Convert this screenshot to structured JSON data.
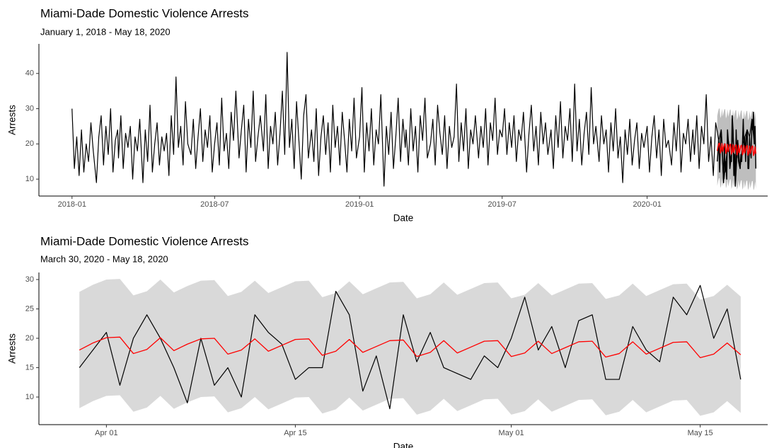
{
  "chart_data": [
    {
      "type": "line",
      "title": "Miami-Dade Domestic Violence Arrests",
      "subtitle": "January 1, 2018 - May 18, 2020",
      "x_label": "Date",
      "y_label": "Arrests",
      "xlim": [
        "2017-11-20",
        "2020-06-02"
      ],
      "ylim": [
        5.2,
        48.4
      ],
      "yticks": [
        10,
        20,
        30,
        40
      ],
      "xticks": [
        {
          "value": "2018-01-01",
          "label": "2018-01"
        },
        {
          "value": "2018-07-01",
          "label": "2018-07"
        },
        {
          "value": "2019-01-01",
          "label": "2019-01"
        },
        {
          "value": "2019-07-01",
          "label": "2019-07"
        },
        {
          "value": "2020-01-01",
          "label": "2020-01"
        }
      ],
      "band_color": "#bebebe",
      "x": [
        "2018-01-01",
        "2018-01-04",
        "2018-01-07",
        "2018-01-10",
        "2018-01-13",
        "2018-01-16",
        "2018-01-19",
        "2018-01-22",
        "2018-01-25",
        "2018-01-28",
        "2018-02-01",
        "2018-02-04",
        "2018-02-07",
        "2018-02-10",
        "2018-02-13",
        "2018-02-16",
        "2018-02-19",
        "2018-02-22",
        "2018-02-25",
        "2018-02-28",
        "2018-03-01",
        "2018-03-04",
        "2018-03-07",
        "2018-03-10",
        "2018-03-13",
        "2018-03-16",
        "2018-03-19",
        "2018-03-22",
        "2018-03-25",
        "2018-03-28",
        "2018-04-01",
        "2018-04-04",
        "2018-04-07",
        "2018-04-10",
        "2018-04-13",
        "2018-04-16",
        "2018-04-19",
        "2018-04-22",
        "2018-04-25",
        "2018-04-28",
        "2018-05-01",
        "2018-05-04",
        "2018-05-07",
        "2018-05-10",
        "2018-05-13",
        "2018-05-16",
        "2018-05-19",
        "2018-05-22",
        "2018-05-25",
        "2018-05-28",
        "2018-06-01",
        "2018-06-04",
        "2018-06-07",
        "2018-06-10",
        "2018-06-13",
        "2018-06-16",
        "2018-06-19",
        "2018-06-22",
        "2018-06-25",
        "2018-06-28",
        "2018-07-01",
        "2018-07-04",
        "2018-07-07",
        "2018-07-10",
        "2018-07-13",
        "2018-07-16",
        "2018-07-19",
        "2018-07-22",
        "2018-07-25",
        "2018-07-28",
        "2018-08-01",
        "2018-08-04",
        "2018-08-07",
        "2018-08-10",
        "2018-08-13",
        "2018-08-16",
        "2018-08-19",
        "2018-08-22",
        "2018-08-25",
        "2018-08-28",
        "2018-09-01",
        "2018-09-04",
        "2018-09-07",
        "2018-09-10",
        "2018-09-13",
        "2018-09-16",
        "2018-09-19",
        "2018-09-22",
        "2018-09-25",
        "2018-09-28",
        "2018-10-01",
        "2018-10-04",
        "2018-10-07",
        "2018-10-10",
        "2018-10-13",
        "2018-10-16",
        "2018-10-19",
        "2018-10-22",
        "2018-10-25",
        "2018-10-28",
        "2018-11-01",
        "2018-11-04",
        "2018-11-07",
        "2018-11-10",
        "2018-11-13",
        "2018-11-16",
        "2018-11-19",
        "2018-11-22",
        "2018-11-25",
        "2018-11-28",
        "2018-12-01",
        "2018-12-04",
        "2018-12-07",
        "2018-12-10",
        "2018-12-13",
        "2018-12-16",
        "2018-12-19",
        "2018-12-22",
        "2018-12-25",
        "2018-12-28",
        "2019-01-01",
        "2019-01-04",
        "2019-01-07",
        "2019-01-10",
        "2019-01-13",
        "2019-01-16",
        "2019-01-19",
        "2019-01-22",
        "2019-01-25",
        "2019-01-28",
        "2019-02-01",
        "2019-02-04",
        "2019-02-07",
        "2019-02-10",
        "2019-02-13",
        "2019-02-16",
        "2019-02-19",
        "2019-02-22",
        "2019-02-25",
        "2019-02-28",
        "2019-03-01",
        "2019-03-04",
        "2019-03-07",
        "2019-03-10",
        "2019-03-13",
        "2019-03-16",
        "2019-03-19",
        "2019-03-22",
        "2019-03-25",
        "2019-03-28",
        "2019-04-01",
        "2019-04-04",
        "2019-04-07",
        "2019-04-10",
        "2019-04-13",
        "2019-04-16",
        "2019-04-19",
        "2019-04-22",
        "2019-04-25",
        "2019-04-28",
        "2019-05-01",
        "2019-05-04",
        "2019-05-07",
        "2019-05-10",
        "2019-05-13",
        "2019-05-16",
        "2019-05-19",
        "2019-05-22",
        "2019-05-25",
        "2019-05-28",
        "2019-06-01",
        "2019-06-04",
        "2019-06-07",
        "2019-06-10",
        "2019-06-13",
        "2019-06-16",
        "2019-06-19",
        "2019-06-22",
        "2019-06-25",
        "2019-06-28",
        "2019-07-01",
        "2019-07-04",
        "2019-07-07",
        "2019-07-10",
        "2019-07-13",
        "2019-07-16",
        "2019-07-19",
        "2019-07-22",
        "2019-07-25",
        "2019-07-28",
        "2019-08-01",
        "2019-08-04",
        "2019-08-07",
        "2019-08-10",
        "2019-08-13",
        "2019-08-16",
        "2019-08-19",
        "2019-08-22",
        "2019-08-25",
        "2019-08-28",
        "2019-09-01",
        "2019-09-04",
        "2019-09-07",
        "2019-09-10",
        "2019-09-13",
        "2019-09-16",
        "2019-09-19",
        "2019-09-22",
        "2019-09-25",
        "2019-09-28",
        "2019-10-01",
        "2019-10-04",
        "2019-10-07",
        "2019-10-10",
        "2019-10-13",
        "2019-10-16",
        "2019-10-19",
        "2019-10-22",
        "2019-10-25",
        "2019-10-28",
        "2019-11-01",
        "2019-11-04",
        "2019-11-07",
        "2019-11-10",
        "2019-11-13",
        "2019-11-16",
        "2019-11-19",
        "2019-11-22",
        "2019-11-25",
        "2019-11-28",
        "2019-12-01",
        "2019-12-04",
        "2019-12-07",
        "2019-12-10",
        "2019-12-13",
        "2019-12-16",
        "2019-12-19",
        "2019-12-22",
        "2019-12-25",
        "2019-12-28",
        "2020-01-01",
        "2020-01-04",
        "2020-01-07",
        "2020-01-10",
        "2020-01-13",
        "2020-01-16",
        "2020-01-19",
        "2020-01-22",
        "2020-01-25",
        "2020-01-28",
        "2020-02-01",
        "2020-02-04",
        "2020-02-07",
        "2020-02-10",
        "2020-02-13",
        "2020-02-16",
        "2020-02-19",
        "2020-02-22",
        "2020-02-25",
        "2020-02-28",
        "2020-03-01",
        "2020-03-04",
        "2020-03-07",
        "2020-03-10",
        "2020-03-13",
        "2020-03-16",
        "2020-03-19",
        "2020-03-22",
        "2020-03-25",
        "2020-03-28",
        "2020-04-01",
        "2020-04-04",
        "2020-04-07",
        "2020-04-10",
        "2020-04-13",
        "2020-04-16",
        "2020-04-19",
        "2020-04-22",
        "2020-04-25",
        "2020-04-28",
        "2020-05-01",
        "2020-05-04",
        "2020-05-07",
        "2020-05-10",
        "2020-05-13",
        "2020-05-16"
      ],
      "series": [
        {
          "color": "#000000",
          "values": [
            30,
            13,
            22,
            11,
            24,
            12,
            20,
            15,
            26,
            18,
            9,
            22,
            28,
            14,
            25,
            17,
            30,
            12,
            21,
            24,
            16,
            28,
            13,
            23,
            19,
            25,
            10,
            22,
            18,
            27,
            9,
            24,
            15,
            31,
            12,
            20,
            26,
            14,
            22,
            18,
            23,
            11,
            28,
            17,
            39,
            19,
            25,
            14,
            32,
            20,
            17,
            27,
            13,
            22,
            30,
            15,
            24,
            19,
            28,
            12,
            20,
            26,
            14,
            33,
            18,
            23,
            13,
            29,
            21,
            35,
            16,
            24,
            31,
            12,
            27,
            19,
            35,
            15,
            22,
            28,
            18,
            34,
            13,
            25,
            20,
            29,
            14,
            23,
            35,
            17,
            46,
            19,
            27,
            13,
            32,
            21,
            10,
            28,
            34,
            16,
            24,
            15,
            30,
            11,
            22,
            28,
            17,
            26,
            12,
            31,
            19,
            25,
            14,
            29,
            21,
            12,
            27,
            18,
            33,
            16,
            22,
            36,
            12,
            26,
            18,
            30,
            14,
            24,
            20,
            34,
            8,
            25,
            17,
            29,
            13,
            22,
            33,
            15,
            27,
            19,
            24,
            14,
            30,
            18,
            25,
            12,
            28,
            21,
            33,
            16,
            20,
            27,
            14,
            31,
            23,
            17,
            28,
            13,
            25,
            19,
            22,
            37,
            15,
            26,
            18,
            30,
            13,
            24,
            20,
            28,
            16,
            25,
            19,
            30,
            14,
            26,
            21,
            33,
            17,
            24,
            22,
            30,
            17,
            26,
            19,
            28,
            15,
            24,
            21,
            29,
            12,
            23,
            31,
            18,
            25,
            14,
            29,
            20,
            26,
            17,
            24,
            13,
            28,
            19,
            32,
            16,
            25,
            21,
            30,
            15,
            37,
            18,
            27,
            14,
            23,
            29,
            17,
            36,
            20,
            25,
            15,
            28,
            20,
            24,
            12,
            26,
            18,
            30,
            16,
            22,
            9,
            24,
            17,
            27,
            14,
            21,
            26,
            13,
            23,
            19,
            25,
            12,
            22,
            28,
            16,
            24,
            11,
            27,
            19,
            21,
            14,
            26,
            18,
            31,
            12,
            23,
            20,
            27,
            15,
            24,
            17,
            28,
            13,
            25,
            20,
            34,
            15,
            22,
            11,
            26,
            21,
            24,
            9,
            15,
            21,
            15,
            24,
            8,
            21,
            13,
            20,
            22,
            24,
            22,
            27,
            20
          ]
        }
      ]
    },
    {
      "type": "line",
      "title": "Miami-Dade Domestic Violence Arrests",
      "subtitle": "March 30, 2020 - May 18, 2020",
      "x_label": "Date",
      "y_label": "Arrests",
      "xlim": [
        "2020-03-27",
        "2020-05-20"
      ],
      "ylim": [
        5.3,
        31.2
      ],
      "yticks": [
        10,
        15,
        20,
        25,
        30
      ],
      "xticks": [
        {
          "value": "2020-04-01",
          "label": "Apr 01"
        },
        {
          "value": "2020-04-15",
          "label": "Apr 15"
        },
        {
          "value": "2020-05-01",
          "label": "May 01"
        },
        {
          "value": "2020-05-15",
          "label": "May 15"
        }
      ],
      "x": [
        "2020-03-30",
        "2020-03-31",
        "2020-04-01",
        "2020-04-02",
        "2020-04-03",
        "2020-04-04",
        "2020-04-05",
        "2020-04-06",
        "2020-04-07",
        "2020-04-08",
        "2020-04-09",
        "2020-04-10",
        "2020-04-11",
        "2020-04-12",
        "2020-04-13",
        "2020-04-14",
        "2020-04-15",
        "2020-04-16",
        "2020-04-17",
        "2020-04-18",
        "2020-04-19",
        "2020-04-20",
        "2020-04-21",
        "2020-04-22",
        "2020-04-23",
        "2020-04-24",
        "2020-04-25",
        "2020-04-26",
        "2020-04-27",
        "2020-04-28",
        "2020-04-29",
        "2020-04-30",
        "2020-05-01",
        "2020-05-02",
        "2020-05-03",
        "2020-05-04",
        "2020-05-05",
        "2020-05-06",
        "2020-05-07",
        "2020-05-08",
        "2020-05-09",
        "2020-05-10",
        "2020-05-11",
        "2020-05-12",
        "2020-05-13",
        "2020-05-14",
        "2020-05-15",
        "2020-05-16",
        "2020-05-17",
        "2020-05-18"
      ],
      "band": {
        "color": "#d9d9d9",
        "lower": [
          8.1,
          9.3,
          10.2,
          10.3,
          7.5,
          8.2,
          10.2,
          8.0,
          9.1,
          10.0,
          10.1,
          7.4,
          8.1,
          10.0,
          7.9,
          8.9,
          9.9,
          10.0,
          7.2,
          7.9,
          9.9,
          7.7,
          8.7,
          9.7,
          9.8,
          7.0,
          7.7,
          9.7,
          7.6,
          8.6,
          9.6,
          9.7,
          7.0,
          7.6,
          9.6,
          7.5,
          8.5,
          9.5,
          9.6,
          6.9,
          7.5,
          9.5,
          7.4,
          8.4,
          9.4,
          9.5,
          6.8,
          7.4,
          9.3,
          7.3
        ],
        "upper": [
          27.9,
          29.1,
          30.0,
          30.1,
          27.3,
          28.0,
          30.0,
          27.8,
          28.9,
          29.8,
          29.9,
          27.2,
          27.9,
          29.8,
          27.7,
          28.7,
          29.7,
          29.8,
          27.0,
          27.7,
          29.7,
          27.5,
          28.5,
          29.5,
          29.6,
          26.8,
          27.5,
          29.5,
          27.4,
          28.4,
          29.4,
          29.5,
          26.8,
          27.4,
          29.4,
          27.3,
          28.3,
          29.3,
          29.4,
          26.7,
          27.3,
          29.3,
          27.2,
          28.2,
          29.2,
          29.3,
          26.6,
          27.2,
          29.1,
          27.1
        ]
      },
      "series": [
        {
          "color": "#000000",
          "values": [
            15,
            18,
            21,
            12,
            20,
            24,
            20,
            15,
            9,
            20,
            12,
            15,
            10,
            24,
            21,
            19,
            13,
            15,
            15,
            28,
            24,
            11,
            17,
            8,
            24,
            16,
            21,
            15,
            14,
            13,
            17,
            15,
            20,
            27,
            18,
            22,
            15,
            23,
            24,
            13,
            13,
            22,
            18,
            16,
            27,
            24,
            29,
            20,
            25,
            13
          ]
        },
        {
          "color": "#ff0000",
          "values": [
            18.0,
            19.2,
            20.1,
            20.2,
            17.4,
            18.1,
            20.1,
            17.9,
            19.0,
            19.9,
            20.0,
            17.3,
            18.0,
            19.9,
            17.8,
            18.8,
            19.8,
            19.9,
            17.1,
            17.8,
            19.8,
            17.6,
            18.6,
            19.6,
            19.7,
            16.9,
            17.6,
            19.6,
            17.5,
            18.5,
            19.5,
            19.6,
            16.9,
            17.5,
            19.5,
            17.4,
            18.4,
            19.4,
            19.5,
            16.8,
            17.4,
            19.4,
            17.3,
            18.3,
            19.3,
            19.4,
            16.7,
            17.3,
            19.2,
            17.2
          ]
        }
      ]
    }
  ]
}
